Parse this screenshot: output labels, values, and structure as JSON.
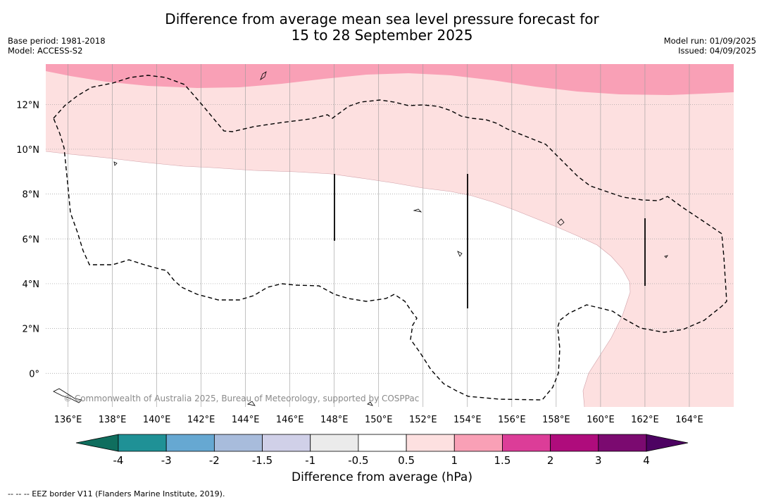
{
  "header": {
    "title_line1": "Difference from average mean sea level pressure forecast for",
    "title_line2": "15 to 28 September 2025",
    "base_period": "Base period: 1981-2018",
    "model": "Model: ACCESS-S2",
    "model_run": "Model run: 01/09/2025",
    "issued": "Issued: 04/09/2025"
  },
  "map": {
    "copyright": "© Commonwealth of Australia 2025, Bureau of Meteorology, supported by COSPPac",
    "colors": {
      "anomaly_0.5_1": "#fde0e0",
      "anomaly_1_1.5": "#f9a0b6",
      "eez_border": "#000000"
    }
  },
  "chart_data": {
    "type": "heatmap",
    "title": "Difference from average mean sea level pressure forecast for 15 to 28 September 2025",
    "xlim": [
      135.0,
      166.0
    ],
    "ylim": [
      -1.5,
      13.8
    ],
    "x_ticks": [
      136,
      138,
      140,
      142,
      144,
      146,
      148,
      150,
      152,
      154,
      156,
      158,
      160,
      162,
      164
    ],
    "x_tick_labels": [
      "136°E",
      "138°E",
      "140°E",
      "142°E",
      "144°E",
      "146°E",
      "148°E",
      "150°E",
      "152°E",
      "154°E",
      "156°E",
      "158°E",
      "160°E",
      "162°E",
      "164°E"
    ],
    "y_ticks": [
      0,
      2,
      4,
      6,
      8,
      10,
      12
    ],
    "y_tick_labels": [
      "0°",
      "2°N",
      "4°N",
      "6°N",
      "8°N",
      "10°N",
      "12°N"
    ],
    "grid": true,
    "regions": [
      {
        "range": "0.5 to 1",
        "location": "northern and eastern part of the domain"
      },
      {
        "range": "1 to 1.5",
        "location": "northern edge of the domain"
      },
      {
        "range": "-0.5 to 0.5",
        "location": "central and south-western part of the domain"
      }
    ],
    "colorbar": {
      "label": "Difference from average (hPa)",
      "tick_labels": [
        "-4",
        "-3",
        "-2",
        "-1.5",
        "-1",
        "-0.5",
        "0.5",
        "1",
        "1.5",
        "2",
        "3",
        "4"
      ],
      "colors": [
        "#0f6e5e",
        "#1f9196",
        "#66a8d2",
        "#a8bcdc",
        "#d0d0e8",
        "#ebebeb",
        "#ffffff",
        "#fde0e0",
        "#f9a0b6",
        "#dc3d98",
        "#af0c7c",
        "#7b0a70",
        "#4d0262"
      ]
    }
  },
  "footer": {
    "eez_legend": "--  --  -- EEZ border V11 (Flanders Marine Institute, 2019)."
  }
}
